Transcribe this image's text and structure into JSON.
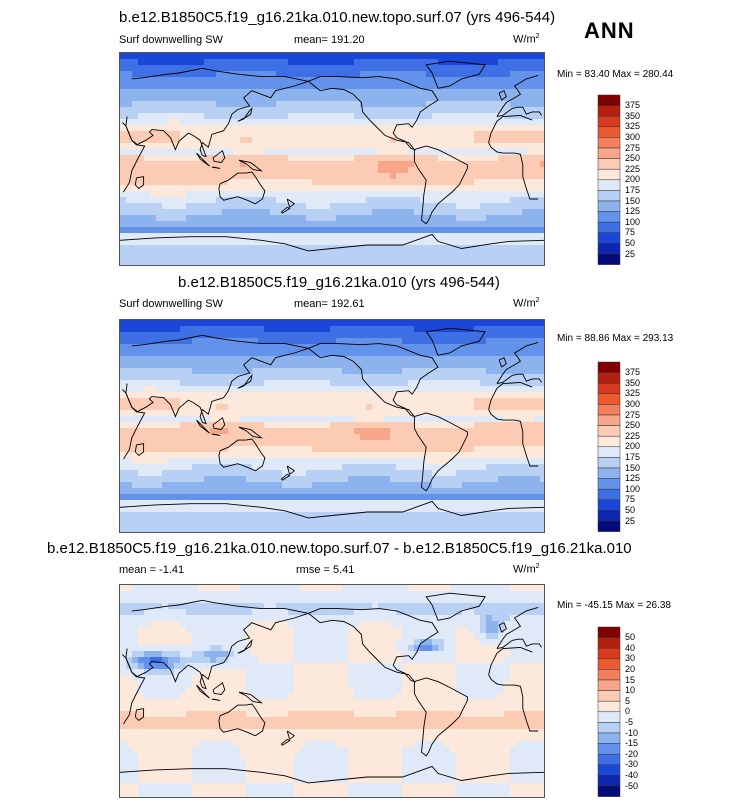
{
  "season": "ANN",
  "panels": [
    {
      "title": "b.e12.B1850C5.f19_g16.21ka.010.new.topo.surf.07 (yrs 496-544)",
      "variable": "Surf downwelling SW",
      "mean": "mean= 191.20",
      "rmse": "",
      "units": "W/m",
      "units_exp": "2",
      "minmax": "Min =  83.40 Max = 280.44",
      "colorbar_labels": [
        "375",
        "350",
        "325",
        "300",
        "275",
        "250",
        "225",
        "200",
        "175",
        "150",
        "125",
        "100",
        "75",
        "50",
        "25"
      ],
      "colorbar_colors": [
        "#800000",
        "#b3200f",
        "#d73a1c",
        "#ee5a2f",
        "#f47f5c",
        "#f7a689",
        "#fbcbb4",
        "#fde8dc",
        "#dfe9f8",
        "#b8d0f3",
        "#8db3ee",
        "#6392ea",
        "#3e6fe4",
        "#1a47d8",
        "#0d27b0",
        "#050a7a"
      ],
      "kind": "abs"
    },
    {
      "title": "b.e12.B1850C5.f19_g16.21ka.010 (yrs 496-544)",
      "variable": "Surf downwelling SW",
      "mean": "mean= 192.61",
      "rmse": "",
      "units": "W/m",
      "units_exp": "2",
      "minmax": "Min =  88.86 Max = 293.13",
      "colorbar_labels": [
        "375",
        "350",
        "325",
        "300",
        "275",
        "250",
        "225",
        "200",
        "175",
        "150",
        "125",
        "100",
        "75",
        "50",
        "25"
      ],
      "colorbar_colors": [
        "#800000",
        "#b3200f",
        "#d73a1c",
        "#ee5a2f",
        "#f47f5c",
        "#f7a689",
        "#fbcbb4",
        "#fde8dc",
        "#dfe9f8",
        "#b8d0f3",
        "#8db3ee",
        "#6392ea",
        "#3e6fe4",
        "#1a47d8",
        "#0d27b0",
        "#050a7a"
      ],
      "kind": "abs"
    },
    {
      "title": "b.e12.B1850C5.f19_g16.21ka.010.new.topo.surf.07 - b.e12.B1850C5.f19_g16.21ka.010",
      "variable": "",
      "mean": "mean =  -1.41",
      "rmse": "rmse =   5.41",
      "units": "W/m",
      "units_exp": "2",
      "minmax": "Min = -45.15 Max =  26.38",
      "colorbar_labels": [
        "50",
        "40",
        "30",
        "20",
        "15",
        "10",
        "5",
        "0",
        "-5",
        "-10",
        "-15",
        "-20",
        "-30",
        "-40",
        "-50"
      ],
      "colorbar_colors": [
        "#800000",
        "#b3200f",
        "#d73a1c",
        "#ee5a2f",
        "#f47f5c",
        "#f7a689",
        "#fbcbb4",
        "#fde8dc",
        "#dfe9f8",
        "#b8d0f3",
        "#8db3ee",
        "#6392ea",
        "#3e6fe4",
        "#1a47d8",
        "#0d27b0",
        "#050a7a"
      ],
      "kind": "diff"
    }
  ]
}
